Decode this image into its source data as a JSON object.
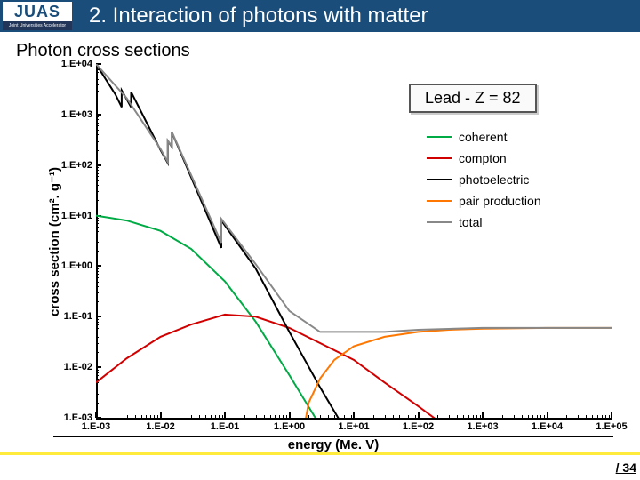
{
  "header": {
    "logo_text": "JUAS",
    "logo_sub": "Joint Universities Accelerator School",
    "title": "2. Interaction of photons with matter"
  },
  "subtitle": "Photon cross sections",
  "lead_label": "Lead - Z = 82",
  "chart": {
    "type": "line",
    "background_color": "#ffffff",
    "axis_color": "#000000",
    "xlabel": "energy (Me. V)",
    "ylabel": "cross section (cm². g⁻¹)",
    "xscale": "log",
    "yscale": "log",
    "xlim": [
      0.001,
      100000.0
    ],
    "ylim": [
      0.001,
      10000.0
    ],
    "xticks": [
      "1.E-03",
      "1.E-02",
      "1.E-01",
      "1.E+00",
      "1.E+01",
      "1.E+02",
      "1.E+03",
      "1.E+04",
      "1.E+05"
    ],
    "yticks": [
      "1.E-03",
      "1.E-02",
      "1.E-01",
      "1.E+00",
      "1.E+01",
      "1.E+02",
      "1.E+03",
      "1.E+04"
    ],
    "label_fontsize": 15,
    "tick_fontsize": 11,
    "line_width": 2,
    "series": {
      "coherent": {
        "color": "#00aa44",
        "label": "coherent",
        "x": [
          0.001,
          0.003,
          0.01,
          0.03,
          0.1,
          0.3,
          1,
          3,
          10
        ],
        "y": [
          10,
          8,
          5,
          2.2,
          0.5,
          0.08,
          0.007,
          0.0007,
          5e-05
        ]
      },
      "compton": {
        "color": "#d10000",
        "label": "compton",
        "x": [
          0.001,
          0.003,
          0.01,
          0.03,
          0.1,
          0.3,
          1,
          3,
          10,
          30,
          100,
          300
        ],
        "y": [
          0.005,
          0.015,
          0.04,
          0.07,
          0.11,
          0.1,
          0.06,
          0.03,
          0.014,
          0.005,
          0.0017,
          0.0006
        ]
      },
      "photoelectric": {
        "color": "#000000",
        "label": "photoelectric",
        "x": [
          0.001,
          0.002,
          0.0025,
          0.002501,
          0.003,
          0.0035,
          0.003501,
          0.01,
          0.013,
          0.01301,
          0.015,
          0.01501,
          0.088,
          0.0881,
          0.3,
          1,
          3,
          10,
          30
        ],
        "y": [
          10000.0,
          2500.0,
          1400.0,
          3000.0,
          2000.0,
          1400.0,
          2800.0,
          200,
          110,
          300,
          230,
          450,
          2.3,
          8,
          0.9,
          0.05,
          0.004,
          0.0003,
          3e-05
        ]
      },
      "pair": {
        "color": "#ff7700",
        "label": "pair production",
        "x": [
          1.3,
          2,
          3,
          5,
          10,
          30,
          100,
          300,
          1000.0,
          10000.0,
          100000.0
        ],
        "y": [
          0.0001,
          0.002,
          0.006,
          0.014,
          0.026,
          0.04,
          0.05,
          0.055,
          0.058,
          0.06,
          0.06
        ]
      },
      "total": {
        "color": "#888888",
        "label": "total",
        "x": [
          0.001,
          0.003,
          0.01,
          0.013,
          0.01301,
          0.015,
          0.01501,
          0.088,
          0.0881,
          0.3,
          1,
          3,
          10,
          30,
          100,
          1000.0,
          100000.0
        ],
        "y": [
          10000.0,
          2100.0,
          210,
          115,
          305,
          235,
          455,
          2.9,
          8.6,
          1.1,
          0.13,
          0.05,
          0.05,
          0.05,
          0.055,
          0.06,
          0.06
        ]
      }
    },
    "legend_order": [
      "coherent",
      "compton",
      "photoelectric",
      "pair",
      "total"
    ]
  },
  "footer": {
    "page_total": "/ 34"
  }
}
